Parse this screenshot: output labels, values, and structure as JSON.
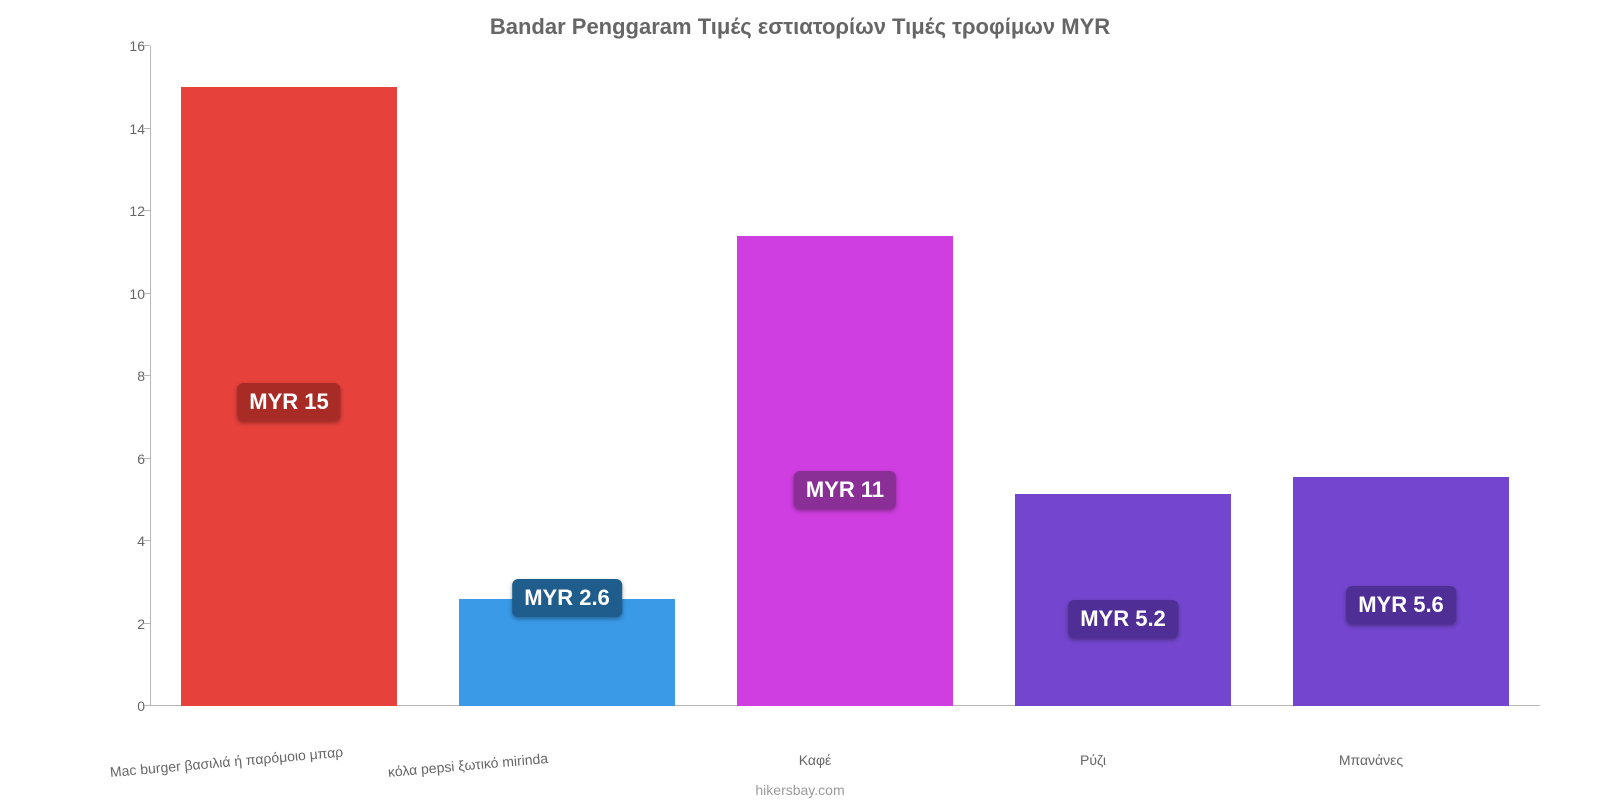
{
  "chart": {
    "type": "bar",
    "title": "Bandar Penggaram Τιμές εστιατορίων Τιμές τροφίμων MYR",
    "title_fontsize": 22,
    "title_color": "#666666",
    "background_color": "#ffffff",
    "axis_line_color": "#b7b7b7",
    "tick_label_color": "#666666",
    "tick_label_fontsize": 14,
    "ylim": [
      0,
      16
    ],
    "ytick_step": 2,
    "yticks": [
      0,
      2,
      4,
      6,
      8,
      10,
      12,
      14,
      16
    ],
    "bar_width": 0.78,
    "categories": [
      "Mac burger βασιλιά ή παρόμοιο μπαρ",
      "κόλα pepsi ξωτικό mirinda",
      "Καφέ",
      "Ρύζι",
      "Μπανάνες"
    ],
    "values": [
      15,
      2.6,
      11.4,
      5.15,
      5.55
    ],
    "value_labels": [
      "MYR 15",
      "MYR 2.6",
      "MYR 11",
      "MYR 5.2",
      "MYR 5.6"
    ],
    "bar_colors": [
      "#e7413b",
      "#3a9ae8",
      "#cf3ee0",
      "#7446cf",
      "#7446cf"
    ],
    "label_badge_colors": [
      "#a92b26",
      "#1f5d8c",
      "#8a2f96",
      "#4f2f95",
      "#4f2f95"
    ],
    "label_text_color": "#ffffff",
    "label_fontsize": 22,
    "xlabel_rotation_first": -5,
    "attribution": "hikersbay.com",
    "attribution_color": "#9b9b9b"
  }
}
